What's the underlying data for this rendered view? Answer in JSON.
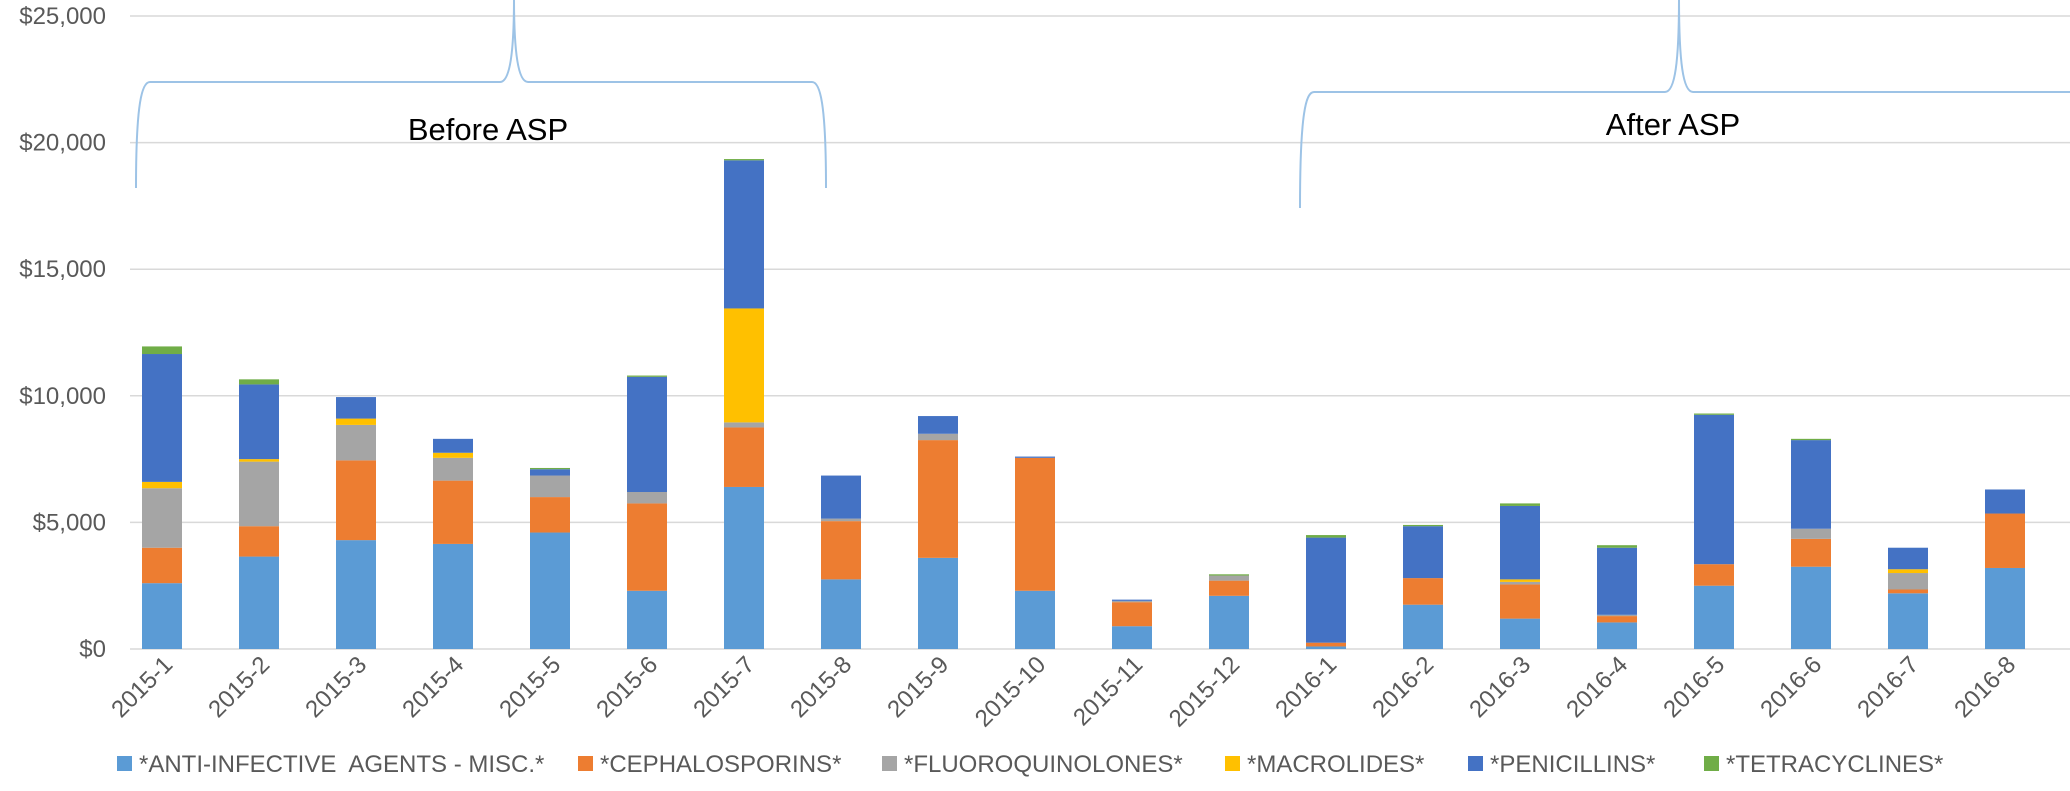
{
  "chart_data": {
    "type": "bar",
    "stacked": true,
    "title": "",
    "xlabel": "",
    "ylabel": "",
    "ylim": [
      0,
      25000
    ],
    "yticks": [
      {
        "value": 0,
        "label": "$0"
      },
      {
        "value": 5000,
        "label": "$5,000"
      },
      {
        "value": 10000,
        "label": "$10,000"
      },
      {
        "value": 15000,
        "label": "$15,000"
      },
      {
        "value": 20000,
        "label": "$20,000"
      },
      {
        "value": 25000,
        "label": "$25,000"
      }
    ],
    "grid": true,
    "legend_position": "bottom",
    "categories": [
      "2015-1",
      "2015-2",
      "2015-3",
      "2015-4",
      "2015-5",
      "2015-6",
      "2015-7",
      "2015-8",
      "2015-9",
      "2015-10",
      "2015-11",
      "2015-12",
      "2016-1",
      "2016-2",
      "2016-3",
      "2016-4",
      "2016-5",
      "2016-6",
      "2016-7",
      "2016-8"
    ],
    "series": [
      {
        "name": "*ANTI-INFECTIVE  AGENTS - MISC.*",
        "color": "#5b9bd5",
        "values": [
          2600,
          3650,
          4300,
          4150,
          4600,
          2300,
          6400,
          2750,
          3600,
          2300,
          900,
          2100,
          100,
          1750,
          1200,
          1050,
          2500,
          3250,
          2200,
          3200
        ]
      },
      {
        "name": "*CEPHALOSPORINS*",
        "color": "#ed7d31",
        "values": [
          1400,
          1200,
          3150,
          2500,
          1400,
          3450,
          2350,
          2300,
          4650,
          5250,
          950,
          600,
          150,
          1050,
          1350,
          250,
          850,
          1100,
          150,
          2150
        ]
      },
      {
        "name": "*FLUOROQUINOLONES*",
        "color": "#a5a5a5",
        "values": [
          2350,
          2550,
          1400,
          900,
          850,
          450,
          200,
          100,
          250,
          0,
          50,
          200,
          0,
          0,
          100,
          50,
          0,
          400,
          650,
          0
        ]
      },
      {
        "name": "*MACROLIDES*",
        "color": "#ffc000",
        "values": [
          250,
          100,
          250,
          200,
          0,
          0,
          4500,
          0,
          0,
          0,
          0,
          0,
          0,
          0,
          100,
          0,
          0,
          0,
          150,
          0
        ]
      },
      {
        "name": "*PENICILLINS*",
        "color": "#4472c4",
        "values": [
          5050,
          2950,
          850,
          550,
          250,
          4550,
          5850,
          1700,
          700,
          50,
          50,
          0,
          4150,
          2050,
          2900,
          2650,
          5900,
          3500,
          850,
          950
        ]
      },
      {
        "name": "*TETRACYCLINES*",
        "color": "#70ad47",
        "values": [
          300,
          200,
          0,
          0,
          50,
          50,
          50,
          0,
          0,
          0,
          0,
          50,
          100,
          50,
          100,
          100,
          50,
          50,
          0,
          0
        ]
      }
    ],
    "annotations": [
      {
        "text": "Before ASP",
        "from": "2015-1",
        "to": "2015-7"
      },
      {
        "text": "After ASP",
        "from": "2016-1",
        "to": "2016-8"
      }
    ]
  }
}
